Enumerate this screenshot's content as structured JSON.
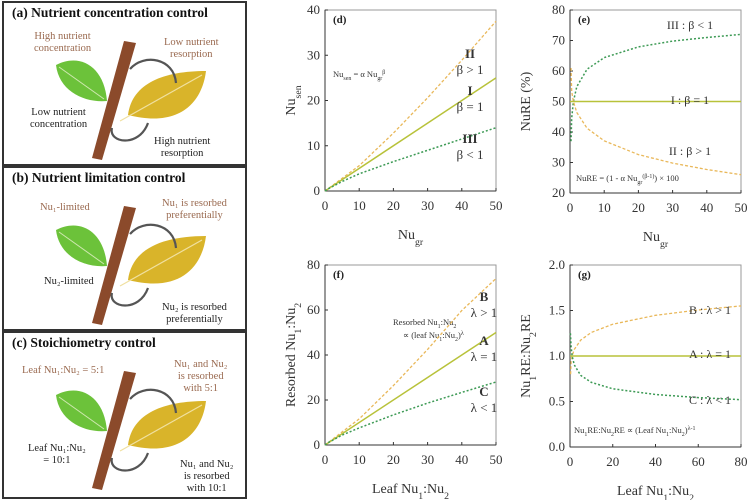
{
  "panels": [
    {
      "title": "(a) Nutrient concentration control",
      "green_top": [
        "High nutrient",
        "concentration"
      ],
      "yellow_top": [
        "Low nutrient",
        "resorption"
      ],
      "green_bottom": [
        "Low nutrient",
        "concentration"
      ],
      "yellow_bottom": [
        "High nutrient",
        "resorption"
      ]
    },
    {
      "title": "(b) Nutrient limitation control",
      "green_top": [
        "Nu₁-limited"
      ],
      "yellow_top": [
        "Nu₁ is resorbed",
        "preferentially"
      ],
      "green_bottom": [
        "Nu₂-limited"
      ],
      "yellow_bottom": [
        "Nu₂ is resorbed",
        "preferentially"
      ]
    },
    {
      "title": "(c) Stoichiometry control",
      "green_top": [
        "Leaf Nu₁:Nu₂ = 5:1"
      ],
      "yellow_top": [
        "Nu₁ and Nu₂",
        "is resorbed",
        "with 5:1"
      ],
      "green_bottom": [
        "Leaf Nu₁:Nu₂",
        "= 10:1"
      ],
      "yellow_bottom": [
        "Nu₁ and Nu₂",
        "is resorbed",
        "with 10:1"
      ]
    }
  ],
  "colors": {
    "orange": "#e9b85a",
    "yellowgreen": "#b8c23a",
    "green": "#3d9a55",
    "stem": "#8b4a2b",
    "leaf_green": "#6cc23a",
    "leaf_yellow": "#d9b42a"
  },
  "chart_data": [
    {
      "type": "line",
      "panel": "(d)",
      "xlabel": "Nu_{gr}",
      "ylabel": "Nu_{sen}",
      "xlim": [
        0,
        50
      ],
      "ylim": [
        0,
        40
      ],
      "xticks": [
        0,
        10,
        20,
        30,
        40,
        50
      ],
      "yticks": [
        0,
        10,
        20,
        30,
        40
      ],
      "equation": "Nu_{sen} = α Nu_{gr}^{β}",
      "series": [
        {
          "name": "II",
          "condition": "β > 1",
          "style": "orange",
          "x": [
            0,
            10,
            20,
            30,
            40,
            50
          ],
          "y": [
            0,
            5.6,
            12.8,
            20.6,
            28.9,
            37.5
          ]
        },
        {
          "name": "I",
          "condition": "β = 1",
          "style": "yellowgreen",
          "x": [
            0,
            50
          ],
          "y": [
            0,
            25
          ]
        },
        {
          "name": "III",
          "condition": "β < 1",
          "style": "green",
          "x": [
            0,
            1,
            5,
            10,
            20,
            30,
            40,
            50
          ],
          "y": [
            0,
            0.5,
            2.1,
            3.8,
            6.5,
            9.0,
            11.5,
            14
          ]
        }
      ]
    },
    {
      "type": "line",
      "panel": "(e)",
      "xlabel": "Nu_{gr}",
      "ylabel": "NuRE (%)",
      "xlim": [
        0,
        50
      ],
      "ylim": [
        20,
        80
      ],
      "xticks": [
        0,
        10,
        20,
        30,
        40,
        50
      ],
      "yticks": [
        20,
        30,
        40,
        50,
        60,
        70,
        80
      ],
      "equation": "NuRE = (1 - α Nu_{gr}^{(β-1)}) × 100",
      "series": [
        {
          "name": "III",
          "condition": "β < 1",
          "label": "III : β < 1",
          "style": "green",
          "x": [
            0.3,
            0.5,
            1,
            2,
            5,
            10,
            20,
            30,
            40,
            50
          ],
          "y": [
            37,
            44.6,
            50,
            54.9,
            60.6,
            64.4,
            67.9,
            69.8,
            71.0,
            72.0
          ]
        },
        {
          "name": "I",
          "condition": "β = 1",
          "label": "I : β = 1",
          "style": "yellowgreen",
          "x": [
            0,
            50
          ],
          "y": [
            50,
            50
          ]
        },
        {
          "name": "II",
          "condition": "β > 1",
          "label": "II : β > 1",
          "style": "orange",
          "x": [
            0.3,
            0.5,
            1,
            2,
            5,
            10,
            20,
            30,
            40,
            50
          ],
          "y": [
            61,
            53.3,
            50,
            46.4,
            41.2,
            37.1,
            32.6,
            29.8,
            27.7,
            26.0
          ]
        }
      ]
    },
    {
      "type": "line",
      "panel": "(f)",
      "xlabel": "Leaf Nu_{1}:Nu_{2}",
      "ylabel": "Resorbed Nu_{1}:Nu_{2}",
      "xlim": [
        0,
        50
      ],
      "ylim": [
        0,
        80
      ],
      "xticks": [
        0,
        10,
        20,
        30,
        40,
        50
      ],
      "yticks": [
        0,
        20,
        40,
        60,
        80
      ],
      "equation": "Resorbed Nu_{1}:Nu_{2}|∝ (leaf Nu_{1}:Nu_{2})^{λ}",
      "series": [
        {
          "name": "B",
          "condition": "λ > 1",
          "style": "orange",
          "x": [
            0,
            10,
            20,
            30,
            40,
            50
          ],
          "y": [
            0,
            11.6,
            26.4,
            42.5,
            59.8,
            74
          ]
        },
        {
          "name": "A",
          "condition": "λ = 1",
          "style": "yellowgreen",
          "x": [
            0,
            50
          ],
          "y": [
            0,
            50
          ]
        },
        {
          "name": "C",
          "condition": "λ < 1",
          "style": "green",
          "x": [
            0,
            1,
            5,
            10,
            20,
            30,
            40,
            50
          ],
          "y": [
            0,
            1.1,
            4.4,
            7.6,
            13.4,
            18.6,
            23.4,
            28
          ]
        }
      ]
    },
    {
      "type": "line",
      "panel": "(g)",
      "xlabel": "Leaf Nu_{1}:Nu_{2}",
      "ylabel": "Nu_{1}RE:Nu_{2}RE",
      "xlim": [
        0,
        80
      ],
      "ylim": [
        0,
        2.0
      ],
      "xticks": [
        0,
        20,
        40,
        60,
        80
      ],
      "yticks": [
        "0.0",
        "0.5",
        "1.0",
        "1.5",
        "2.0"
      ],
      "equation": "Nu_{1}RE:Nu_{2}RE ∝ (Leaf Nu_{1}:Nu_{2})^{λ-1}",
      "series": [
        {
          "name": "B",
          "condition": "λ > 1",
          "label": "B : λ > 1",
          "style": "orange",
          "x": [
            0.3,
            0.5,
            1,
            2,
            5,
            10,
            20,
            40,
            60,
            80
          ],
          "y": [
            0.8,
            0.933,
            1,
            1.072,
            1.175,
            1.259,
            1.349,
            1.447,
            1.506,
            1.55
          ]
        },
        {
          "name": "A",
          "condition": "λ = 1",
          "label": "A : λ = 1",
          "style": "yellowgreen",
          "x": [
            0,
            80
          ],
          "y": [
            1,
            1
          ]
        },
        {
          "name": "C",
          "condition": "λ < 1",
          "label": "C : λ < 1",
          "style": "green",
          "x": [
            0.2,
            0.5,
            1,
            2,
            5,
            10,
            20,
            40,
            60,
            80
          ],
          "y": [
            1.25,
            1.109,
            1,
            0.902,
            0.787,
            0.71,
            0.64,
            0.577,
            0.543,
            0.52
          ]
        }
      ]
    }
  ]
}
